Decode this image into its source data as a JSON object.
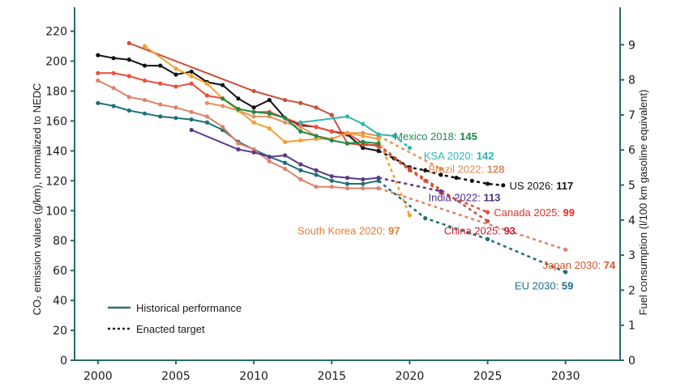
{
  "chart_data": {
    "type": "line",
    "ylabel": "CO₂ emission values (g/km), normalized to NEDC",
    "ylabel_right": "Fuel consumption (l/100 km gasoline equivalent)",
    "xlim": [
      1998.5,
      2033.5
    ],
    "ylim": [
      0,
      236
    ],
    "ylim_right": [
      0,
      10.07
    ],
    "x_ticks": [
      "2000",
      "2005",
      "2010",
      "2015",
      "2020",
      "2025",
      "2030"
    ],
    "y_ticks": [
      "0",
      "20",
      "40",
      "60",
      "80",
      "100",
      "120",
      "140",
      "160",
      "180",
      "200",
      "220"
    ],
    "y_ticks_right": [
      "0",
      "1",
      "2",
      "3",
      "4",
      "5",
      "6",
      "7",
      "8",
      "9"
    ],
    "legend": {
      "position": "bottom-left",
      "historical": "Historical performance",
      "target": "Enacted target"
    },
    "series": [
      {
        "name": "US",
        "color": "#111111",
        "historical": [
          [
            2000,
            204
          ],
          [
            2001,
            202
          ],
          [
            2002,
            201
          ],
          [
            2003,
            197
          ],
          [
            2004,
            197
          ],
          [
            2005,
            191
          ],
          [
            2006,
            193
          ],
          [
            2007,
            186
          ],
          [
            2008,
            184
          ],
          [
            2009,
            175
          ],
          [
            2010,
            169
          ],
          [
            2011,
            174
          ],
          [
            2012,
            162
          ],
          [
            2013,
            157
          ],
          [
            2014,
            156
          ],
          [
            2015,
            153
          ],
          [
            2016,
            151
          ],
          [
            2017,
            142
          ],
          [
            2018,
            140
          ]
        ],
        "target": [
          [
            2018,
            140
          ],
          [
            2019,
            135
          ],
          [
            2020,
            129
          ],
          [
            2021,
            127
          ],
          [
            2022,
            124
          ],
          [
            2023,
            122
          ],
          [
            2024,
            120
          ],
          [
            2025,
            118
          ],
          [
            2026,
            117
          ]
        ],
        "label": {
          "text": "US 2026: ",
          "value": "117",
          "x": 2026.4,
          "y": 117,
          "anchor": "start",
          "color": "#111111"
        }
      },
      {
        "name": "EU",
        "color": "#1f7078",
        "historical": [
          [
            2000,
            172
          ],
          [
            2001,
            170
          ],
          [
            2002,
            167
          ],
          [
            2003,
            165
          ],
          [
            2004,
            163
          ],
          [
            2005,
            162
          ],
          [
            2006,
            161
          ],
          [
            2007,
            159
          ],
          [
            2008,
            154
          ],
          [
            2009,
            146
          ],
          [
            2010,
            141
          ],
          [
            2011,
            136
          ],
          [
            2012,
            132
          ],
          [
            2013,
            127
          ],
          [
            2014,
            124
          ],
          [
            2015,
            120
          ],
          [
            2016,
            118
          ],
          [
            2017,
            118
          ],
          [
            2018,
            120
          ]
        ],
        "target": [
          [
            2018,
            120
          ],
          [
            2021,
            95
          ],
          [
            2025,
            81
          ],
          [
            2030,
            59
          ]
        ],
        "label": {
          "text": "EU 2030: ",
          "value": "59",
          "x": 2030.5,
          "y": 50,
          "anchor": "end",
          "color": "#1f6b8a"
        }
      },
      {
        "name": "Japan",
        "color": "#e0826b",
        "historical": [
          [
            2000,
            187
          ],
          [
            2001,
            182
          ],
          [
            2002,
            176
          ],
          [
            2003,
            174
          ],
          [
            2004,
            171
          ],
          [
            2005,
            169
          ],
          [
            2006,
            166
          ],
          [
            2007,
            163
          ],
          [
            2008,
            156
          ],
          [
            2009,
            145
          ],
          [
            2010,
            141
          ],
          [
            2011,
            133
          ],
          [
            2012,
            128
          ],
          [
            2013,
            121
          ],
          [
            2014,
            116
          ],
          [
            2015,
            116
          ],
          [
            2016,
            115
          ],
          [
            2017,
            115
          ],
          [
            2018,
            115
          ]
        ],
        "target": [
          [
            2018,
            115
          ],
          [
            2030,
            74
          ]
        ],
        "label": {
          "text": "Japan 2030: ",
          "value": "74",
          "x": 2033.2,
          "y": 64,
          "anchor": "end",
          "color": "#d9542b"
        }
      },
      {
        "name": "Canada",
        "color": "#ef4b3a",
        "historical": [
          [
            2000,
            192
          ],
          [
            2001,
            192
          ],
          [
            2002,
            190
          ],
          [
            2003,
            187
          ],
          [
            2004,
            185
          ],
          [
            2005,
            183
          ],
          [
            2006,
            185
          ],
          [
            2007,
            177
          ],
          [
            2008,
            175
          ],
          [
            2009,
            168
          ],
          [
            2010,
            166
          ],
          [
            2011,
            166
          ],
          [
            2012,
            162
          ],
          [
            2013,
            158
          ],
          [
            2014,
            156
          ],
          [
            2015,
            153
          ],
          [
            2016,
            152
          ],
          [
            2017,
            145
          ],
          [
            2018,
            143
          ]
        ],
        "target": [
          [
            2018,
            143
          ],
          [
            2020,
            127
          ],
          [
            2021,
            120
          ],
          [
            2022,
            112
          ],
          [
            2025,
            99
          ]
        ],
        "label": {
          "text": "Canada 2025: ",
          "value": "99",
          "x": 2025.4,
          "y": 99,
          "anchor": "start",
          "color": "#e0332a"
        }
      },
      {
        "name": "China",
        "color": "#c8503a",
        "historical": [
          [
            2002,
            212
          ],
          [
            2010,
            180
          ],
          [
            2012,
            174
          ],
          [
            2013,
            172
          ],
          [
            2014,
            169
          ],
          [
            2015,
            164
          ],
          [
            2016,
            145
          ],
          [
            2017,
            144
          ],
          [
            2018,
            144
          ]
        ],
        "target": [
          [
            2018,
            144
          ],
          [
            2020,
            128
          ],
          [
            2025,
            93
          ]
        ],
        "label": {
          "text": "China 2025: ",
          "value": "93",
          "x": 2022.2,
          "y": 87,
          "anchor": "start",
          "color": "#c8202e"
        }
      },
      {
        "name": "Brazil",
        "color": "#e0955a",
        "historical": [
          [
            2007,
            172
          ],
          [
            2008,
            170
          ],
          [
            2009,
            167
          ],
          [
            2010,
            163
          ],
          [
            2011,
            163
          ],
          [
            2012,
            159
          ],
          [
            2013,
            156
          ],
          [
            2014,
            150
          ],
          [
            2015,
            148
          ],
          [
            2016,
            152
          ],
          [
            2017,
            152
          ],
          [
            2018,
            150
          ]
        ],
        "target": [
          [
            2018,
            150
          ],
          [
            2022,
            128
          ]
        ],
        "label": {
          "text": "Brazil 2022: ",
          "value": "128",
          "x": 2021.2,
          "y": 128,
          "anchor": "start",
          "color": "#d98a55"
        }
      },
      {
        "name": "South Korea",
        "color": "#f5a030",
        "historical": [
          [
            2003,
            210
          ],
          [
            2005,
            195
          ],
          [
            2006,
            190
          ],
          [
            2007,
            185
          ],
          [
            2008,
            175
          ],
          [
            2009,
            167
          ],
          [
            2010,
            159
          ],
          [
            2011,
            155
          ],
          [
            2012,
            146
          ],
          [
            2013,
            147
          ],
          [
            2014,
            148
          ],
          [
            2015,
            148
          ],
          [
            2016,
            152
          ],
          [
            2017,
            150
          ],
          [
            2018,
            148
          ]
        ],
        "target": [
          [
            2018,
            148
          ],
          [
            2020,
            97
          ]
        ],
        "label": {
          "text": "South Korea 2020: ",
          "value": "97",
          "x": 2012.8,
          "y": 87,
          "anchor": "start",
          "color": "#f07a2a"
        }
      },
      {
        "name": "Mexico",
        "color": "#1f8a4a",
        "historical": [
          [
            2008,
            175
          ],
          [
            2009,
            168
          ],
          [
            2010,
            166
          ],
          [
            2011,
            165
          ],
          [
            2012,
            162
          ],
          [
            2013,
            153
          ],
          [
            2014,
            150
          ],
          [
            2015,
            147
          ],
          [
            2016,
            145
          ],
          [
            2017,
            146
          ],
          [
            2018,
            145
          ]
        ],
        "target": [],
        "label": {
          "text": "Mexico 2018: ",
          "value": "145",
          "x": 2019.0,
          "y": 150,
          "anchor": "start",
          "color": "#1f8a4a"
        }
      },
      {
        "name": "KSA",
        "color": "#2db5b5",
        "historical": [
          [
            2013,
            159
          ],
          [
            2016,
            163
          ],
          [
            2017,
            158
          ],
          [
            2018,
            151
          ],
          [
            2019,
            150
          ]
        ],
        "target": [
          [
            2019,
            150
          ],
          [
            2020,
            142
          ]
        ],
        "label": {
          "text": "KSA 2020: ",
          "value": "142",
          "x": 2020.9,
          "y": 137,
          "anchor": "start",
          "color": "#2db5b5"
        }
      },
      {
        "name": "India",
        "color": "#5a3a8a",
        "historical": [
          [
            2006,
            154
          ],
          [
            2009,
            141
          ],
          [
            2010,
            139
          ],
          [
            2011,
            136
          ],
          [
            2012,
            137
          ],
          [
            2013,
            131
          ],
          [
            2014,
            127
          ],
          [
            2015,
            123
          ],
          [
            2016,
            122
          ],
          [
            2017,
            121
          ],
          [
            2018,
            122
          ]
        ],
        "target": [
          [
            2018,
            122
          ],
          [
            2022,
            113
          ]
        ],
        "label": {
          "text": "India 2022: ",
          "value": "113",
          "x": 2021.2,
          "y": 109,
          "anchor": "start",
          "color": "#4a2e86"
        }
      }
    ]
  }
}
